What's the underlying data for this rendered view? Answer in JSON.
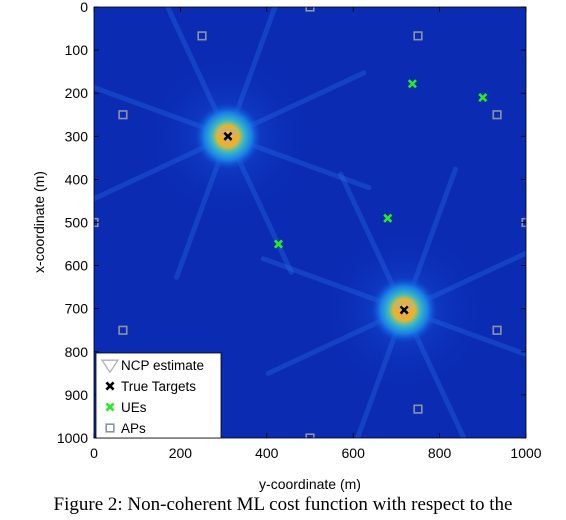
{
  "chart_data": {
    "type": "heatmap",
    "xlabel": "y-coordinate (m)",
    "ylabel": "x-coordinate (m)",
    "xlim": [
      0,
      1000
    ],
    "ylim": [
      0,
      1000
    ],
    "y_axis_reversed": true,
    "x_ticks": [
      "0",
      "200",
      "400",
      "600",
      "800",
      "1000"
    ],
    "y_ticks": [
      "0",
      "100",
      "200",
      "300",
      "400",
      "500",
      "600",
      "700",
      "800",
      "900",
      "1000"
    ],
    "colormap": "parula-like (dark blue low, yellow high)",
    "peaks": [
      {
        "y": 310,
        "x": 300
      },
      {
        "y": 718,
        "x": 703
      }
    ],
    "series": [
      {
        "name": "NCP estimate",
        "marker": "triangle-down-open",
        "color": "#aab4b8",
        "points": [
          {
            "y": 310,
            "x": 297
          },
          {
            "y": 718,
            "x": 700
          }
        ]
      },
      {
        "name": "True Targets",
        "marker": "x",
        "color": "#000000",
        "points": [
          {
            "y": 310,
            "x": 300
          },
          {
            "y": 718,
            "x": 703
          }
        ]
      },
      {
        "name": "UEs",
        "marker": "x",
        "color": "#22ee22",
        "points": [
          {
            "y": 737,
            "x": 178
          },
          {
            "y": 900,
            "x": 210
          },
          {
            "y": 680,
            "x": 490
          },
          {
            "y": 427,
            "x": 550
          }
        ]
      },
      {
        "name": "APs",
        "marker": "square-open",
        "color": "#8a94a8",
        "points": [
          {
            "y": 500,
            "x": 0
          },
          {
            "y": 250,
            "x": 67
          },
          {
            "y": 750,
            "x": 67
          },
          {
            "y": 67,
            "x": 250
          },
          {
            "y": 933,
            "x": 250
          },
          {
            "y": 0,
            "x": 500
          },
          {
            "y": 1000,
            "x": 500
          },
          {
            "y": 67,
            "x": 750
          },
          {
            "y": 933,
            "x": 750
          },
          {
            "y": 750,
            "x": 933
          },
          {
            "y": 500,
            "x": 1000
          }
        ]
      }
    ],
    "legend_position": "bottom-left"
  },
  "caption": "Figure 2: Non-coherent ML cost function with respect to the"
}
